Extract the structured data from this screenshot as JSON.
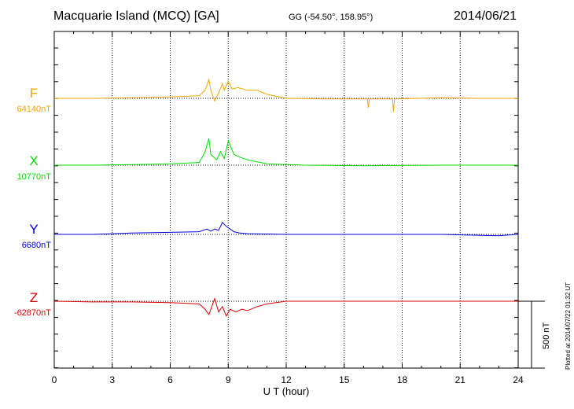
{
  "header": {
    "station": "Macquarie Island (MCQ)  [GA]",
    "coords": "GG (-54.50°, 158.95°)",
    "date": "2014/06/21"
  },
  "footer": {
    "plotted": "Plotted at 2014/07/22 01:32 UT",
    "scale": "500 nT"
  },
  "chart_data": {
    "type": "line",
    "title": "Macquarie Island (MCQ)  [GA]",
    "xlabel": "U T (hour)",
    "xlim": [
      0,
      24
    ],
    "xticks": [
      0,
      3,
      6,
      9,
      12,
      15,
      18,
      21,
      24
    ],
    "grid": true,
    "scale_bar_nT": 500,
    "series": [
      {
        "name": "F",
        "baseline": "64140nT",
        "color": "#f0a800",
        "deviation_nT": [
          [
            0,
            0
          ],
          [
            2,
            0
          ],
          [
            4,
            5
          ],
          [
            6,
            10
          ],
          [
            7.5,
            20
          ],
          [
            7.8,
            60
          ],
          [
            8,
            140
          ],
          [
            8.1,
            60
          ],
          [
            8.3,
            -20
          ],
          [
            8.5,
            40
          ],
          [
            8.7,
            110
          ],
          [
            8.8,
            60
          ],
          [
            9,
            130
          ],
          [
            9.2,
            70
          ],
          [
            9.5,
            80
          ],
          [
            10,
            60
          ],
          [
            10.5,
            60
          ],
          [
            11,
            30
          ],
          [
            12,
            0
          ],
          [
            14,
            -5
          ],
          [
            16,
            -5
          ],
          [
            16.2,
            -5
          ],
          [
            16.25,
            -70
          ],
          [
            16.3,
            -5
          ],
          [
            17.5,
            -5
          ],
          [
            17.55,
            -100
          ],
          [
            17.6,
            -5
          ],
          [
            20,
            5
          ],
          [
            22,
            0
          ],
          [
            24,
            0
          ]
        ]
      },
      {
        "name": "X",
        "baseline": "10770nT",
        "color": "#00dd00",
        "deviation_nT": [
          [
            0,
            0
          ],
          [
            2,
            0
          ],
          [
            4,
            5
          ],
          [
            6,
            10
          ],
          [
            7.5,
            20
          ],
          [
            7.8,
            100
          ],
          [
            8,
            200
          ],
          [
            8.1,
            80
          ],
          [
            8.4,
            40
          ],
          [
            8.6,
            100
          ],
          [
            8.8,
            50
          ],
          [
            9,
            180
          ],
          [
            9.3,
            80
          ],
          [
            9.6,
            60
          ],
          [
            10,
            40
          ],
          [
            10.5,
            25
          ],
          [
            11,
            10
          ],
          [
            13,
            0
          ],
          [
            16,
            -5
          ],
          [
            20,
            0
          ],
          [
            22,
            0
          ],
          [
            24,
            0
          ]
        ]
      },
      {
        "name": "Y",
        "baseline": "6680nT",
        "color": "#0000dd",
        "deviation_nT": [
          [
            0,
            0
          ],
          [
            2,
            0
          ],
          [
            4,
            10
          ],
          [
            6,
            15
          ],
          [
            7.5,
            20
          ],
          [
            7.9,
            40
          ],
          [
            8.1,
            25
          ],
          [
            8.3,
            40
          ],
          [
            8.5,
            30
          ],
          [
            8.7,
            90
          ],
          [
            8.9,
            60
          ],
          [
            9.1,
            40
          ],
          [
            9.3,
            20
          ],
          [
            9.6,
            10
          ],
          [
            10,
            5
          ],
          [
            12,
            0
          ],
          [
            16,
            0
          ],
          [
            20,
            0
          ],
          [
            23,
            -10
          ],
          [
            24,
            0
          ]
        ]
      },
      {
        "name": "Z",
        "baseline": "-62870nT",
        "color": "#dd0000",
        "deviation_nT": [
          [
            0,
            0
          ],
          [
            2,
            -5
          ],
          [
            4,
            -5
          ],
          [
            6,
            -10
          ],
          [
            7.5,
            -20
          ],
          [
            7.8,
            -60
          ],
          [
            8,
            -100
          ],
          [
            8.15,
            -40
          ],
          [
            8.3,
            20
          ],
          [
            8.5,
            -80
          ],
          [
            8.7,
            -40
          ],
          [
            8.9,
            -110
          ],
          [
            9.1,
            -60
          ],
          [
            9.4,
            -80
          ],
          [
            9.7,
            -60
          ],
          [
            10,
            -70
          ],
          [
            10.5,
            -40
          ],
          [
            11,
            -20
          ],
          [
            12,
            0
          ],
          [
            16,
            0
          ],
          [
            20,
            0
          ],
          [
            24,
            0
          ]
        ]
      }
    ]
  }
}
